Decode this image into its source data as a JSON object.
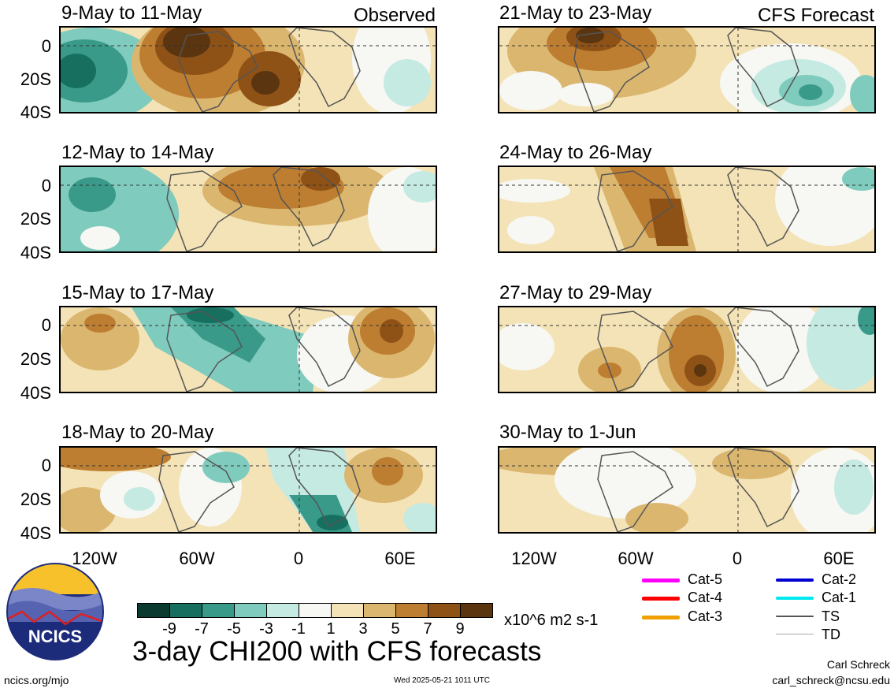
{
  "left_column_label": "Observed",
  "right_column_label": "CFS Forecast",
  "panels_left": [
    {
      "title": "9-May to 11-May"
    },
    {
      "title": "12-May to 14-May"
    },
    {
      "title": "15-May to 17-May"
    },
    {
      "title": "18-May to 20-May"
    }
  ],
  "panels_right": [
    {
      "title": "21-May to 23-May"
    },
    {
      "title": "24-May to 26-May"
    },
    {
      "title": "27-May to 29-May"
    },
    {
      "title": "30-May to 1-Jun"
    }
  ],
  "y_axis": [
    "0",
    "20S",
    "40S"
  ],
  "x_axis": [
    "120W",
    "60W",
    "0",
    "60E"
  ],
  "colorbar": {
    "ticks": [
      "-9",
      "-7",
      "-5",
      "-3",
      "-1",
      "1",
      "3",
      "5",
      "7",
      "9"
    ],
    "units": "x10^6 m2 s-1",
    "colors": [
      "#0b3b30",
      "#17705f",
      "#3a9a8a",
      "#7fcbbd",
      "#c5eae2",
      "#f7f7f4",
      "#f4e3b6",
      "#dbb66f",
      "#bd7e31",
      "#8e5217",
      "#5a3510"
    ]
  },
  "legend": [
    {
      "label": "Cat-5",
      "color": "#ff00ff"
    },
    {
      "label": "Cat-2",
      "color": "#0000d0"
    },
    {
      "label": "Cat-4",
      "color": "#ff0000"
    },
    {
      "label": "Cat-1",
      "color": "#00e8f0"
    },
    {
      "label": "Cat-3",
      "color": "#f0a000"
    },
    {
      "label": "TS",
      "color": "#555555"
    },
    {
      "label": "TD",
      "color": "#aaaaaa"
    }
  ],
  "logo_text": "NCICS",
  "main_title": "3-day CHI200 with CFS forecasts",
  "footer_left": "ncics.org/mjo",
  "footer_center": "Wed 2025-05-21 1011 UTC",
  "author_name": "Carl Schreck",
  "author_email": "carl_schreck@ncsu.edu"
}
